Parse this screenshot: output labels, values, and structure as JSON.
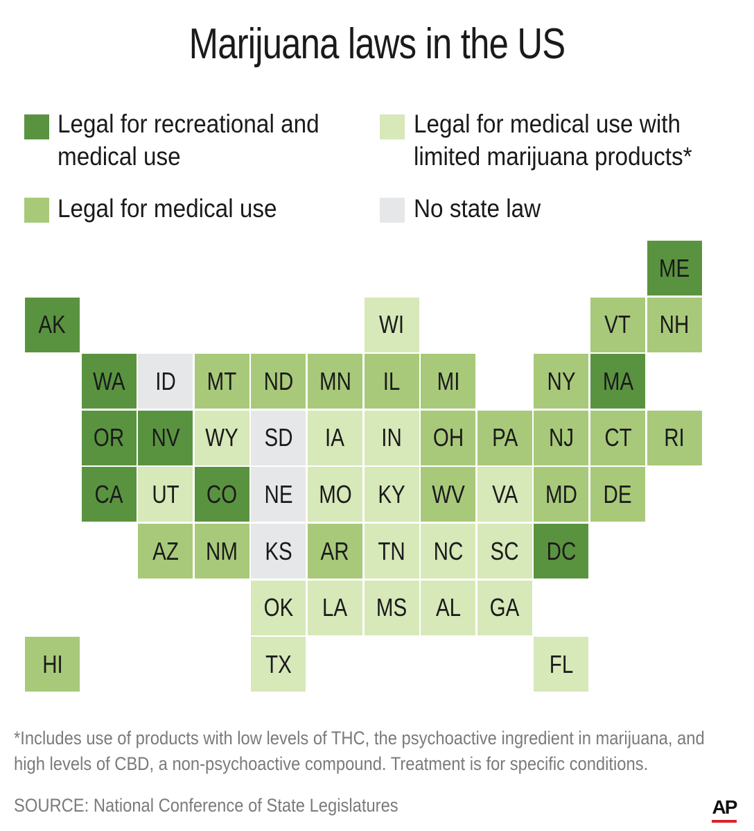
{
  "title": "Marijuana laws in the US",
  "colors": {
    "recreational": "#5a9340",
    "medical": "#a8c97a",
    "limited": "#d7e8b9",
    "none": "#e6e7e9"
  },
  "legend": [
    {
      "key": "recreational",
      "lines": [
        "Legal for recreational and",
        "medical use"
      ]
    },
    {
      "key": "limited",
      "lines": [
        "Legal for medical use with",
        "limited marijuana products*"
      ]
    },
    {
      "key": "medical",
      "lines": [
        "Legal for medical use"
      ]
    },
    {
      "key": "none",
      "lines": [
        "No state law"
      ]
    }
  ],
  "states": [
    {
      "abbr": "ME",
      "status": "recreational"
    },
    {
      "abbr": "AK",
      "status": "recreational"
    },
    {
      "abbr": "WI",
      "status": "limited"
    },
    {
      "abbr": "VT",
      "status": "medical"
    },
    {
      "abbr": "NH",
      "status": "medical"
    },
    {
      "abbr": "WA",
      "status": "recreational"
    },
    {
      "abbr": "ID",
      "status": "none"
    },
    {
      "abbr": "MT",
      "status": "medical"
    },
    {
      "abbr": "ND",
      "status": "medical"
    },
    {
      "abbr": "MN",
      "status": "medical"
    },
    {
      "abbr": "IL",
      "status": "medical"
    },
    {
      "abbr": "MI",
      "status": "medical"
    },
    {
      "abbr": "NY",
      "status": "medical"
    },
    {
      "abbr": "MA",
      "status": "recreational"
    },
    {
      "abbr": "OR",
      "status": "recreational"
    },
    {
      "abbr": "NV",
      "status": "recreational"
    },
    {
      "abbr": "WY",
      "status": "limited"
    },
    {
      "abbr": "SD",
      "status": "none"
    },
    {
      "abbr": "IA",
      "status": "limited"
    },
    {
      "abbr": "IN",
      "status": "limited"
    },
    {
      "abbr": "OH",
      "status": "medical"
    },
    {
      "abbr": "PA",
      "status": "medical"
    },
    {
      "abbr": "NJ",
      "status": "medical"
    },
    {
      "abbr": "CT",
      "status": "medical"
    },
    {
      "abbr": "RI",
      "status": "medical"
    },
    {
      "abbr": "CA",
      "status": "recreational"
    },
    {
      "abbr": "UT",
      "status": "limited"
    },
    {
      "abbr": "CO",
      "status": "recreational"
    },
    {
      "abbr": "NE",
      "status": "none"
    },
    {
      "abbr": "MO",
      "status": "limited"
    },
    {
      "abbr": "KY",
      "status": "limited"
    },
    {
      "abbr": "WV",
      "status": "medical"
    },
    {
      "abbr": "VA",
      "status": "limited"
    },
    {
      "abbr": "MD",
      "status": "medical"
    },
    {
      "abbr": "DE",
      "status": "medical"
    },
    {
      "abbr": "AZ",
      "status": "medical"
    },
    {
      "abbr": "NM",
      "status": "medical"
    },
    {
      "abbr": "KS",
      "status": "none"
    },
    {
      "abbr": "AR",
      "status": "medical"
    },
    {
      "abbr": "TN",
      "status": "limited"
    },
    {
      "abbr": "NC",
      "status": "limited"
    },
    {
      "abbr": "SC",
      "status": "limited"
    },
    {
      "abbr": "DC",
      "status": "recreational"
    },
    {
      "abbr": "OK",
      "status": "limited"
    },
    {
      "abbr": "LA",
      "status": "limited"
    },
    {
      "abbr": "MS",
      "status": "limited"
    },
    {
      "abbr": "AL",
      "status": "limited"
    },
    {
      "abbr": "GA",
      "status": "limited"
    },
    {
      "abbr": "HI",
      "status": "medical"
    },
    {
      "abbr": "TX",
      "status": "limited"
    },
    {
      "abbr": "FL",
      "status": "limited"
    }
  ],
  "footnote": [
    "*Includes use of products with low levels of THC, the psychoactive ingredient in marijuana, and",
    "high levels of CBD, a non-psychoactive compound. Treatment is for specific conditions."
  ],
  "source": "SOURCE: National Conference of State Legislatures",
  "logo": "AP"
}
